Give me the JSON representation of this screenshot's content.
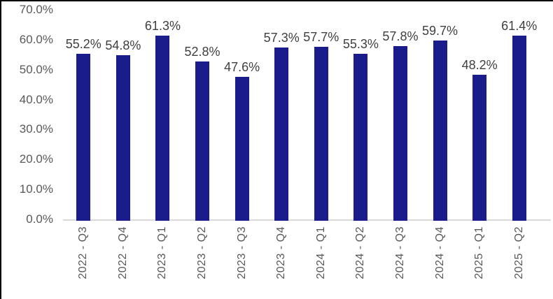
{
  "chart_data": {
    "type": "bar",
    "title": "",
    "categories": [
      "2022 - Q3",
      "2022 - Q4",
      "2023 - Q1",
      "2023 - Q2",
      "2023 - Q3",
      "2023 - Q4",
      "2024 - Q1",
      "2024 - Q2",
      "2024 - Q3",
      "2024 - Q4",
      "2025 - Q1",
      "2025 - Q2"
    ],
    "values": [
      55.2,
      54.8,
      61.3,
      52.8,
      47.6,
      57.3,
      57.7,
      55.3,
      57.8,
      59.7,
      48.2,
      61.4
    ],
    "data_labels": [
      "55.2%",
      "54.8%",
      "61.3%",
      "52.8%",
      "47.6%",
      "57.3%",
      "57.7%",
      "55.3%",
      "57.8%",
      "59.7%",
      "48.2%",
      "61.4%"
    ],
    "y_ticks": [
      "0.0%",
      "10.0%",
      "20.0%",
      "30.0%",
      "40.0%",
      "50.0%",
      "60.0%",
      "70.0%"
    ],
    "y_tick_values": [
      0,
      10,
      20,
      30,
      40,
      50,
      60,
      70
    ],
    "xlabel": "",
    "ylabel": "",
    "ylim": [
      0,
      70
    ],
    "grid": false,
    "legend": "none",
    "colors": {
      "bar_fill": "#1b1c8c",
      "data_label": "#3f3f3f",
      "axis_label": "#595959",
      "axis_line": "#d9d9d9",
      "frame_border": "#000000",
      "background": "#ffffff"
    }
  }
}
